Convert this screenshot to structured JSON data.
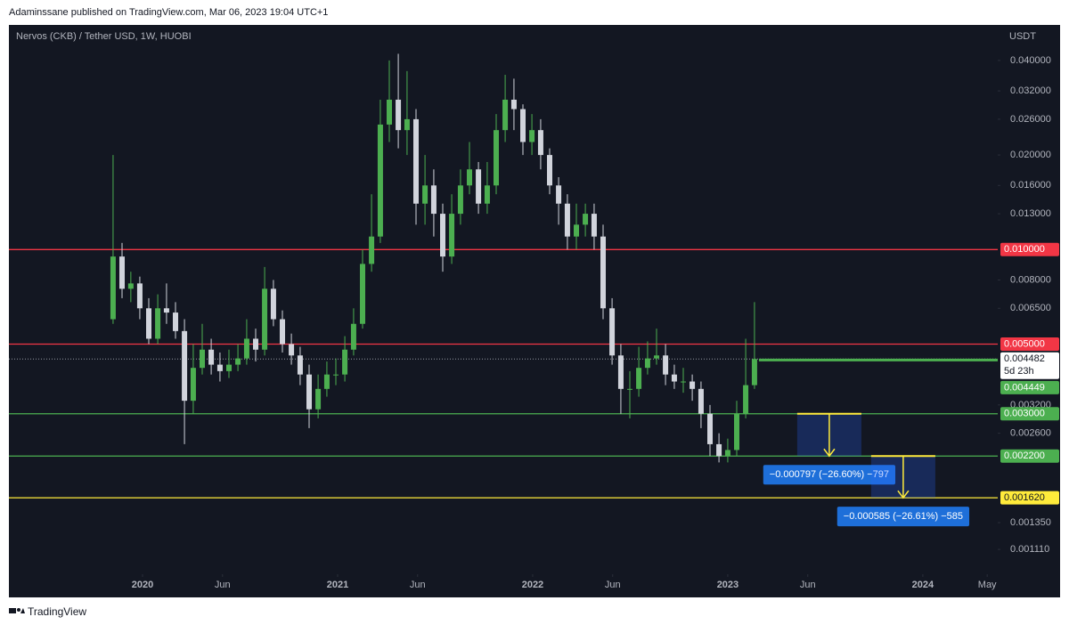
{
  "header": "Adaminssane published on TradingView.com, Mar 06, 2023 19:04 UTC+1",
  "footer": "TradingView",
  "chart_data": {
    "type": "candlestick",
    "title": "Nervos (CKB) / Tether USD, 1W, HUOBI",
    "y_unit": "USDT",
    "log_scale": true,
    "grid": false,
    "up_color": "#4caf50",
    "down_color": "#d1d4dc",
    "xlim": [
      2019.315,
      2024.384
    ],
    "ylim": [
      0.000925,
      0.0519
    ],
    "xticks": [
      2020,
      {
        "value": 2020.41,
        "label": "Jun"
      },
      2021,
      {
        "value": 2021.41,
        "label": "Jun"
      },
      2022,
      {
        "value": 2022.41,
        "label": "Jun"
      },
      2023,
      {
        "value": 2023.41,
        "label": "Jun"
      },
      2024,
      {
        "value": 2024.33,
        "label": "May"
      }
    ],
    "yticks": [
      {
        "value": 0.04,
        "label": "0.040000"
      },
      {
        "value": 0.032,
        "label": "0.032000"
      },
      {
        "value": 0.026,
        "label": "0.026000"
      },
      {
        "value": 0.02,
        "label": "0.020000"
      },
      {
        "value": 0.016,
        "label": "0.016000"
      },
      {
        "value": 0.013,
        "label": "0.013000"
      },
      {
        "value": 0.008,
        "label": "0.008000"
      },
      {
        "value": 0.0065,
        "label": "0.006500"
      },
      {
        "value": 0.0032,
        "label": "0.003200"
      },
      {
        "value": 0.0026,
        "label": "0.002600"
      },
      {
        "value": 0.00135,
        "label": "0.001350"
      },
      {
        "value": 0.00111,
        "label": "0.001110"
      }
    ],
    "x": [
      2019.849,
      2019.895,
      2019.94,
      2019.986,
      2020.032,
      2020.078,
      2020.123,
      2020.169,
      2020.215,
      2020.26,
      2020.306,
      2020.352,
      2020.397,
      2020.443,
      2020.489,
      2020.534,
      2020.58,
      2020.626,
      2020.671,
      2020.717,
      2020.763,
      2020.808,
      2020.854,
      2020.9,
      2020.945,
      2020.991,
      2021.037,
      2021.082,
      2021.128,
      2021.174,
      2021.219,
      2021.265,
      2021.311,
      2021.356,
      2021.402,
      2021.448,
      2021.493,
      2021.539,
      2021.585,
      2021.63,
      2021.676,
      2021.722,
      2021.767,
      2021.813,
      2021.859,
      2021.904,
      2021.95,
      2021.996,
      2022.041,
      2022.087,
      2022.133,
      2022.178,
      2022.224,
      2022.27,
      2022.315,
      2022.361,
      2022.407,
      2022.452,
      2022.498,
      2022.544,
      2022.589,
      2022.635,
      2022.681,
      2022.726,
      2022.772,
      2022.818,
      2022.863,
      2022.909,
      2022.955,
      2023.0,
      2023.046,
      2023.092,
      2023.137
    ],
    "open": [
      0.006,
      0.0095,
      0.0075,
      0.0078,
      0.0065,
      0.0052,
      0.0065,
      0.0063,
      0.0055,
      0.0033,
      0.0042,
      0.0048,
      0.0043,
      0.0041,
      0.0043,
      0.0045,
      0.0052,
      0.0048,
      0.0075,
      0.006,
      0.005,
      0.0046,
      0.004,
      0.0031,
      0.0036,
      0.004,
      0.004,
      0.0048,
      0.0058,
      0.009,
      0.011,
      0.025,
      0.03,
      0.024,
      0.026,
      0.014,
      0.016,
      0.013,
      0.0095,
      0.013,
      0.016,
      0.018,
      0.014,
      0.016,
      0.024,
      0.03,
      0.028,
      0.022,
      0.024,
      0.02,
      0.016,
      0.014,
      0.011,
      0.012,
      0.013,
      0.011,
      0.0065,
      0.0046,
      0.0036,
      0.0036,
      0.0042,
      0.0045,
      0.0046,
      0.004,
      0.0038,
      0.0038,
      0.0036,
      0.003,
      0.0024,
      0.0022,
      0.0023,
      0.003,
      0.0037
    ],
    "high": [
      0.02,
      0.0105,
      0.0085,
      0.0082,
      0.007,
      0.0072,
      0.0078,
      0.0068,
      0.006,
      0.005,
      0.0058,
      0.0052,
      0.0047,
      0.0048,
      0.005,
      0.006,
      0.0056,
      0.0088,
      0.008,
      0.0064,
      0.0054,
      0.0049,
      0.0043,
      0.004,
      0.0044,
      0.0045,
      0.0053,
      0.0065,
      0.01,
      0.015,
      0.03,
      0.04,
      0.042,
      0.037,
      0.028,
      0.02,
      0.018,
      0.014,
      0.015,
      0.018,
      0.022,
      0.019,
      0.019,
      0.027,
      0.036,
      0.035,
      0.029,
      0.027,
      0.026,
      0.021,
      0.017,
      0.015,
      0.014,
      0.014,
      0.014,
      0.012,
      0.007,
      0.005,
      0.0041,
      0.0049,
      0.0051,
      0.0056,
      0.005,
      0.0043,
      0.0042,
      0.004,
      0.0038,
      0.0032,
      0.0026,
      0.0025,
      0.0033,
      0.0052,
      0.0068
    ],
    "low": [
      0.0058,
      0.007,
      0.0068,
      0.006,
      0.005,
      0.005,
      0.0058,
      0.0052,
      0.0024,
      0.003,
      0.004,
      0.004,
      0.0038,
      0.0039,
      0.0041,
      0.0043,
      0.0044,
      0.0046,
      0.0057,
      0.0047,
      0.0043,
      0.0037,
      0.0027,
      0.0029,
      0.0034,
      0.0037,
      0.0038,
      0.0046,
      0.0056,
      0.0085,
      0.0105,
      0.022,
      0.021,
      0.02,
      0.012,
      0.012,
      0.011,
      0.0085,
      0.009,
      0.012,
      0.015,
      0.013,
      0.013,
      0.015,
      0.022,
      0.024,
      0.02,
      0.02,
      0.018,
      0.015,
      0.012,
      0.01,
      0.01,
      0.011,
      0.01,
      0.006,
      0.0043,
      0.003,
      0.0029,
      0.0034,
      0.004,
      0.0043,
      0.0037,
      0.0036,
      0.0035,
      0.0033,
      0.0027,
      0.0022,
      0.0021,
      0.0021,
      0.0022,
      0.0029,
      0.0036
    ],
    "close": [
      0.0095,
      0.0075,
      0.0078,
      0.0065,
      0.0052,
      0.0065,
      0.0063,
      0.0055,
      0.0033,
      0.0042,
      0.0048,
      0.0043,
      0.0041,
      0.0043,
      0.0045,
      0.0052,
      0.0048,
      0.0075,
      0.006,
      0.005,
      0.0046,
      0.004,
      0.0031,
      0.0036,
      0.004,
      0.004,
      0.0048,
      0.0058,
      0.009,
      0.011,
      0.025,
      0.03,
      0.024,
      0.026,
      0.014,
      0.016,
      0.013,
      0.0095,
      0.013,
      0.016,
      0.018,
      0.014,
      0.016,
      0.024,
      0.03,
      0.028,
      0.022,
      0.024,
      0.02,
      0.016,
      0.014,
      0.011,
      0.012,
      0.013,
      0.011,
      0.0065,
      0.0046,
      0.0036,
      0.0036,
      0.0042,
      0.0045,
      0.0046,
      0.004,
      0.0038,
      0.0038,
      0.0036,
      0.003,
      0.0024,
      0.0022,
      0.0023,
      0.003,
      0.0037,
      0.004482
    ],
    "levels": [
      {
        "value": 0.01,
        "label": "0.010000",
        "color": "#f23645"
      },
      {
        "value": 0.005,
        "label": "0.005000",
        "color": "#f23645"
      },
      {
        "value": 0.003,
        "label": "0.003000",
        "color": "#4caf50"
      },
      {
        "value": 0.0022,
        "label": "0.002200",
        "color": "#4caf50"
      },
      {
        "value": 0.00162,
        "label": "0.001620",
        "color": "#ffeb3b"
      }
    ],
    "last_price": {
      "value": 0.004482,
      "label": "0.004482",
      "countdown": "5d 23h"
    },
    "projection": {
      "value": 0.004449,
      "label": "0.004449",
      "x_start": 2023.16,
      "color": "#4caf50"
    },
    "measures": [
      {
        "x": [
          2023.356,
          2023.685
        ],
        "from": 0.003,
        "to": 0.0022,
        "label": "−0.000797 (−26.60%) −797"
      },
      {
        "x": [
          2023.735,
          2024.064
        ],
        "from": 0.0022,
        "to": 0.00162,
        "label": "−0.000585 (−26.61%) −585"
      }
    ]
  }
}
